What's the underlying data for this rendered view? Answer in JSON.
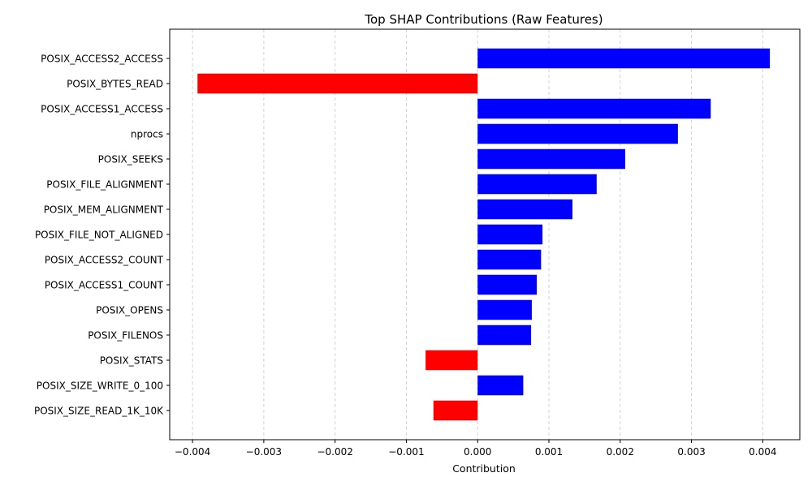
{
  "chart_data": {
    "type": "bar",
    "orientation": "horizontal",
    "title": "Top SHAP Contributions (Raw Features)",
    "xlabel": "Contribution",
    "ylabel": "",
    "xlim": [
      -0.00432,
      0.00452
    ],
    "xticks": [
      -0.004,
      -0.003,
      -0.002,
      -0.001,
      0.0,
      0.001,
      0.002,
      0.003,
      0.004
    ],
    "xtick_labels": [
      "−0.004",
      "−0.003",
      "−0.002",
      "−0.001",
      "0.000",
      "0.001",
      "0.002",
      "0.003",
      "0.004"
    ],
    "grid": {
      "x": true,
      "y": false,
      "style": "dashed"
    },
    "colors": {
      "positive": "#0000ff",
      "negative": "#ff0000",
      "grid": "#d3d3d3"
    },
    "categories": [
      "POSIX_ACCESS2_ACCESS",
      "POSIX_BYTES_READ",
      "POSIX_ACCESS1_ACCESS",
      "nprocs",
      "POSIX_SEEKS",
      "POSIX_FILE_ALIGNMENT",
      "POSIX_MEM_ALIGNMENT",
      "POSIX_FILE_NOT_ALIGNED",
      "POSIX_ACCESS2_COUNT",
      "POSIX_ACCESS1_COUNT",
      "POSIX_OPENS",
      "POSIX_FILENOS",
      "POSIX_STATS",
      "POSIX_SIZE_WRITE_0_100",
      "POSIX_SIZE_READ_1K_10K"
    ],
    "values": [
      0.0041,
      -0.00393,
      0.00327,
      0.00281,
      0.00207,
      0.00167,
      0.00133,
      0.00091,
      0.00089,
      0.00083,
      0.00076,
      0.00075,
      -0.00073,
      0.00064,
      -0.00062
    ]
  }
}
